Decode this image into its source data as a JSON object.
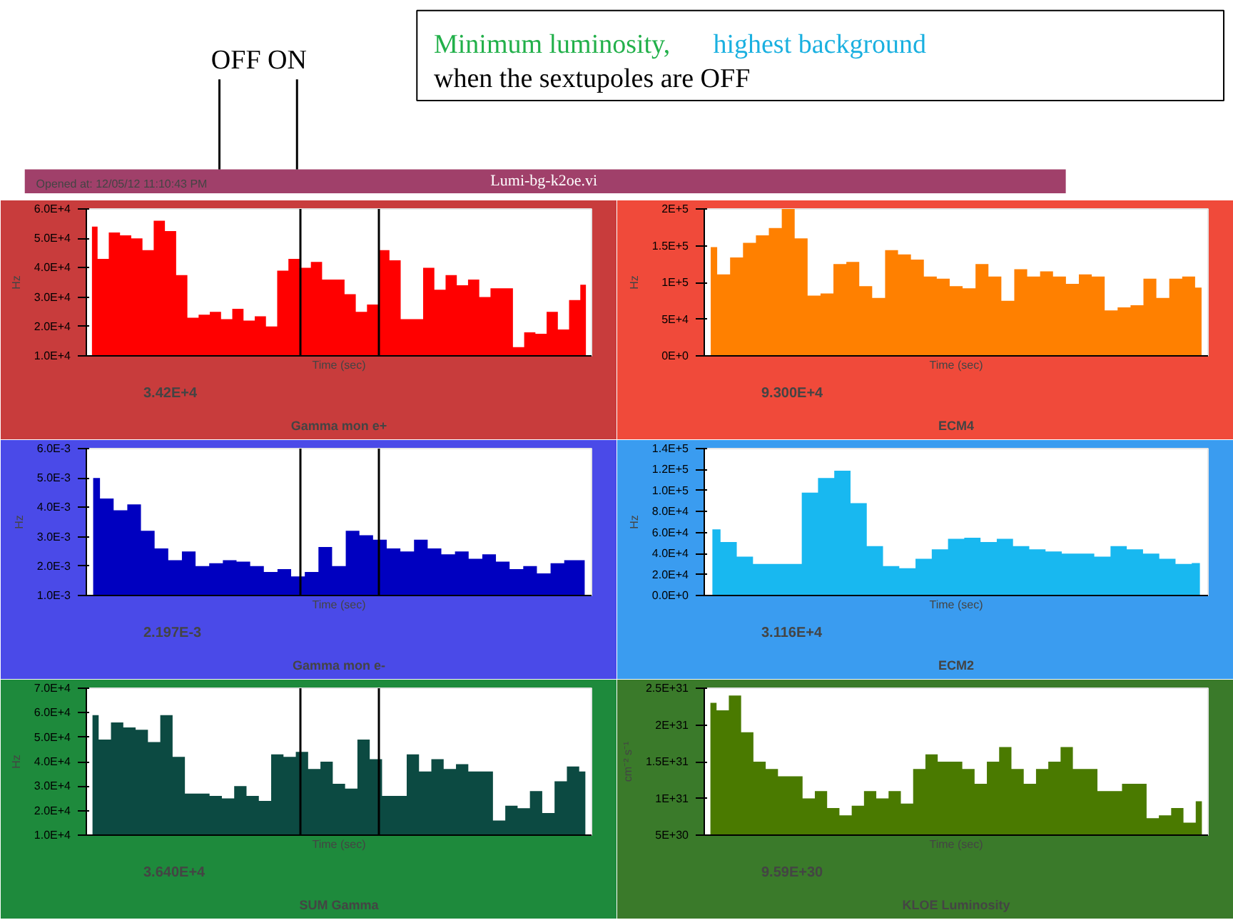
{
  "chart_data": [
    {
      "type": "other",
      "title": "Lumi-bg-k2oe.vi",
      "subtitle": "Opened at: 12/05/12 11:10:43 PM",
      "annotations": [
        "Minimum luminosity,",
        "highest background",
        "when the sextupoles are OFF",
        "OFF ON"
      ]
    },
    {
      "type": "area",
      "title": "Gamma mon e+",
      "xlabel": "Time (sec)",
      "ylabel": "Hz",
      "color": "#ff0000",
      "grid": false,
      "categories": [
        null,
        null,
        null,
        null,
        null,
        null,
        null,
        null,
        null,
        null,
        null,
        null,
        null,
        null,
        null,
        null,
        null,
        null,
        null,
        null,
        null,
        null,
        null,
        null,
        null,
        null,
        null,
        null,
        null,
        null,
        null,
        null,
        null,
        null,
        null,
        null,
        null,
        null,
        null,
        null,
        null,
        null,
        null,
        null,
        null
      ],
      "values": [
        54000,
        43000,
        52000,
        51000,
        50000,
        46000,
        56000,
        52500,
        37500,
        23000,
        24000,
        25000,
        22500,
        26000,
        22000,
        23500,
        20000,
        39000,
        43000,
        40000,
        42000,
        36000,
        36000,
        31000,
        25000,
        27500,
        46000,
        42500,
        22500,
        22500,
        40000,
        32500,
        37500,
        34000,
        36000,
        30000,
        33000,
        33000,
        13000,
        18000,
        17500,
        25000,
        19000,
        29000,
        34200
      ],
      "ylim": [
        10000,
        60000
      ],
      "yticks": [
        {
          "value": 10000,
          "label": "1.0E+4"
        },
        {
          "value": 20000,
          "label": "2.0E+4"
        },
        {
          "value": 30000,
          "label": "3.0E+4"
        },
        {
          "value": 40000,
          "label": "4.0E+4"
        },
        {
          "value": 50000,
          "label": "5.0E+4"
        },
        {
          "value": 60000,
          "label": "6.0E+4"
        }
      ],
      "annotations": [
        "3.42E+4"
      ]
    },
    {
      "type": "area",
      "title": "ECM4",
      "xlabel": "Time (sec)",
      "ylabel": "Hz",
      "color": "#ff8000",
      "grid": false,
      "categories": [
        null,
        null,
        null,
        null,
        null,
        null,
        null,
        null,
        null,
        null,
        null,
        null,
        null,
        null,
        null,
        null,
        null,
        null,
        null,
        null,
        null,
        null,
        null,
        null,
        null,
        null,
        null,
        null,
        null,
        null,
        null,
        null,
        null,
        null,
        null,
        null,
        null,
        null,
        null
      ],
      "values": [
        148000,
        111000,
        134000,
        154000,
        164000,
        174000,
        200000,
        160000,
        82000,
        85000,
        125000,
        128000,
        95000,
        79000,
        144000,
        138000,
        131000,
        108000,
        105000,
        95000,
        92000,
        125000,
        108000,
        75000,
        118000,
        108000,
        115000,
        108000,
        98000,
        111000,
        108000,
        62000,
        66000,
        69000,
        105000,
        79000,
        105000,
        108000,
        93000
      ],
      "ylim": [
        0,
        200000
      ],
      "yticks": [
        {
          "value": 0,
          "label": "0E+0"
        },
        {
          "value": 50000,
          "label": "5E+4"
        },
        {
          "value": 100000,
          "label": "1E+5"
        },
        {
          "value": 150000,
          "label": "1.5E+5"
        },
        {
          "value": 200000,
          "label": "2E+5"
        }
      ],
      "annotations": [
        "9.300E+4"
      ]
    },
    {
      "type": "area",
      "title": "Gamma mon e-",
      "xlabel": "Time (sec)",
      "ylabel": "Hz",
      "color": "#0000c0",
      "grid": false,
      "categories": [
        null,
        null,
        null,
        null,
        null,
        null,
        null,
        null,
        null,
        null,
        null,
        null,
        null,
        null,
        null,
        null,
        null,
        null,
        null,
        null,
        null,
        null,
        null,
        null,
        null,
        null,
        null,
        null,
        null,
        null,
        null,
        null,
        null,
        null,
        null,
        null,
        null
      ],
      "values": [
        0.005,
        0.0043,
        0.0039,
        0.0041,
        0.0032,
        0.0026,
        0.0022,
        0.0025,
        0.002,
        0.0021,
        0.0022,
        0.00215,
        0.002,
        0.0018,
        0.0019,
        0.00165,
        0.0018,
        0.00265,
        0.002,
        0.0032,
        0.00305,
        0.0029,
        0.0026,
        0.0025,
        0.0029,
        0.0026,
        0.0024,
        0.0025,
        0.00225,
        0.0024,
        0.00215,
        0.0019,
        0.002,
        0.00175,
        0.0021,
        0.0022,
        0.0022
      ],
      "ylim": [
        0.001,
        0.006
      ],
      "yticks": [
        {
          "value": 0.001,
          "label": "1.0E-3"
        },
        {
          "value": 0.002,
          "label": "2.0E-3"
        },
        {
          "value": 0.003,
          "label": "3.0E-3"
        },
        {
          "value": 0.004,
          "label": "4.0E-3"
        },
        {
          "value": 0.005,
          "label": "5.0E-3"
        },
        {
          "value": 0.006,
          "label": "6.0E-3"
        }
      ],
      "annotations": [
        "2.197E-3"
      ]
    },
    {
      "type": "area",
      "title": "ECM2",
      "xlabel": "Time (sec)",
      "ylabel": "Hz",
      "color": "#18b8f0",
      "grid": false,
      "categories": [
        null,
        null,
        null,
        null,
        null,
        null,
        null,
        null,
        null,
        null,
        null,
        null,
        null,
        null,
        null,
        null,
        null,
        null,
        null,
        null,
        null,
        null,
        null,
        null,
        null,
        null,
        null,
        null,
        null,
        null,
        null
      ],
      "values": [
        63000,
        51000,
        37000,
        30000,
        30000,
        30000,
        98000,
        112000,
        119000,
        88000,
        47000,
        28000,
        26000,
        35000,
        44000,
        54000,
        55000,
        51000,
        54000,
        47000,
        44000,
        42000,
        40000,
        40000,
        37000,
        47000,
        44000,
        40000,
        35000,
        30000,
        31000
      ],
      "ylim": [
        0,
        140000
      ],
      "yticks": [
        {
          "value": 0,
          "label": "0.0E+0"
        },
        {
          "value": 20000,
          "label": "2.0E+4"
        },
        {
          "value": 40000,
          "label": "4.0E+4"
        },
        {
          "value": 60000,
          "label": "6.0E+4"
        },
        {
          "value": 80000,
          "label": "8.0E+4"
        },
        {
          "value": 100000,
          "label": "1.0E+5"
        },
        {
          "value": 120000,
          "label": "1.2E+5"
        },
        {
          "value": 140000,
          "label": "1.4E+5"
        }
      ],
      "annotations": [
        "3.116E+4"
      ]
    },
    {
      "type": "area",
      "title": "SUM Gamma",
      "xlabel": "Time (sec)",
      "ylabel": "Hz",
      "color": "#0c4a42",
      "grid": false,
      "categories": [
        null,
        null,
        null,
        null,
        null,
        null,
        null,
        null,
        null,
        null,
        null,
        null,
        null,
        null,
        null,
        null,
        null,
        null,
        null,
        null,
        null,
        null,
        null,
        null,
        null,
        null,
        null,
        null,
        null,
        null,
        null,
        null,
        null,
        null,
        null,
        null,
        null,
        null,
        null,
        null,
        null
      ],
      "values": [
        59000,
        49000,
        56000,
        54000,
        53000,
        48000,
        59000,
        42000,
        27000,
        27000,
        26000,
        25000,
        30000,
        26000,
        24000,
        43000,
        42000,
        44000,
        37000,
        40000,
        31000,
        29000,
        49000,
        41000,
        26000,
        26000,
        43000,
        36000,
        41000,
        37000,
        39000,
        36000,
        36000,
        16000,
        22000,
        21000,
        28000,
        19000,
        32000,
        38000,
        36000
      ],
      "ylim": [
        10000,
        70000
      ],
      "yticks": [
        {
          "value": 10000,
          "label": "1.0E+4"
        },
        {
          "value": 20000,
          "label": "2.0E+4"
        },
        {
          "value": 30000,
          "label": "3.0E+4"
        },
        {
          "value": 40000,
          "label": "4.0E+4"
        },
        {
          "value": 50000,
          "label": "5.0E+4"
        },
        {
          "value": 60000,
          "label": "6.0E+4"
        },
        {
          "value": 70000,
          "label": "7.0E+4"
        }
      ],
      "annotations": [
        "3.640E+4"
      ]
    },
    {
      "type": "area",
      "title": "KLOE Luminosity",
      "xlabel": "Time (sec)",
      "ylabel": "cm⁻² s⁻¹",
      "color": "#4a7a00",
      "grid": false,
      "categories": [
        null,
        null,
        null,
        null,
        null,
        null,
        null,
        null,
        null,
        null,
        null,
        null,
        null,
        null,
        null,
        null,
        null,
        null,
        null,
        null,
        null,
        null,
        null,
        null,
        null,
        null,
        null,
        null,
        null,
        null,
        null,
        null,
        null,
        null,
        null,
        null,
        null,
        null,
        null,
        null,
        null
      ],
      "values": [
        2.3e+31,
        2.2e+31,
        2.4e+31,
        1.9e+31,
        1.5e+31,
        1.4e+31,
        1.3e+31,
        1.3e+31,
        1e+31,
        1.1e+31,
        8.7e+30,
        7.7e+30,
        9e+30,
        1.1e+31,
        1e+31,
        1.1e+31,
        9.3e+30,
        1.4e+31,
        1.6e+31,
        1.5e+31,
        1.5e+31,
        1.4e+31,
        1.2e+31,
        1.5e+31,
        1.7e+31,
        1.4e+31,
        1.2e+31,
        1.4e+31,
        1.5e+31,
        1.7e+31,
        1.4e+31,
        1.4e+31,
        1.1e+31,
        1.1e+31,
        1.2e+31,
        1.2e+31,
        7.3e+30,
        7.7e+30,
        8.7e+30,
        6.7e+30,
        9.6e+30
      ],
      "ylim": [
        5e+30,
        2.5e+31
      ],
      "yticks": [
        {
          "value": 5e+30,
          "label": "5E+30"
        },
        {
          "value": 1e+31,
          "label": "1E+31"
        },
        {
          "value": 1.5e+31,
          "label": "1.5E+31"
        },
        {
          "value": 2e+31,
          "label": "2E+31"
        },
        {
          "value": 2.5e+31,
          "label": "2.5E+31"
        }
      ],
      "annotations": [
        "9.59E+30"
      ]
    }
  ]
}
